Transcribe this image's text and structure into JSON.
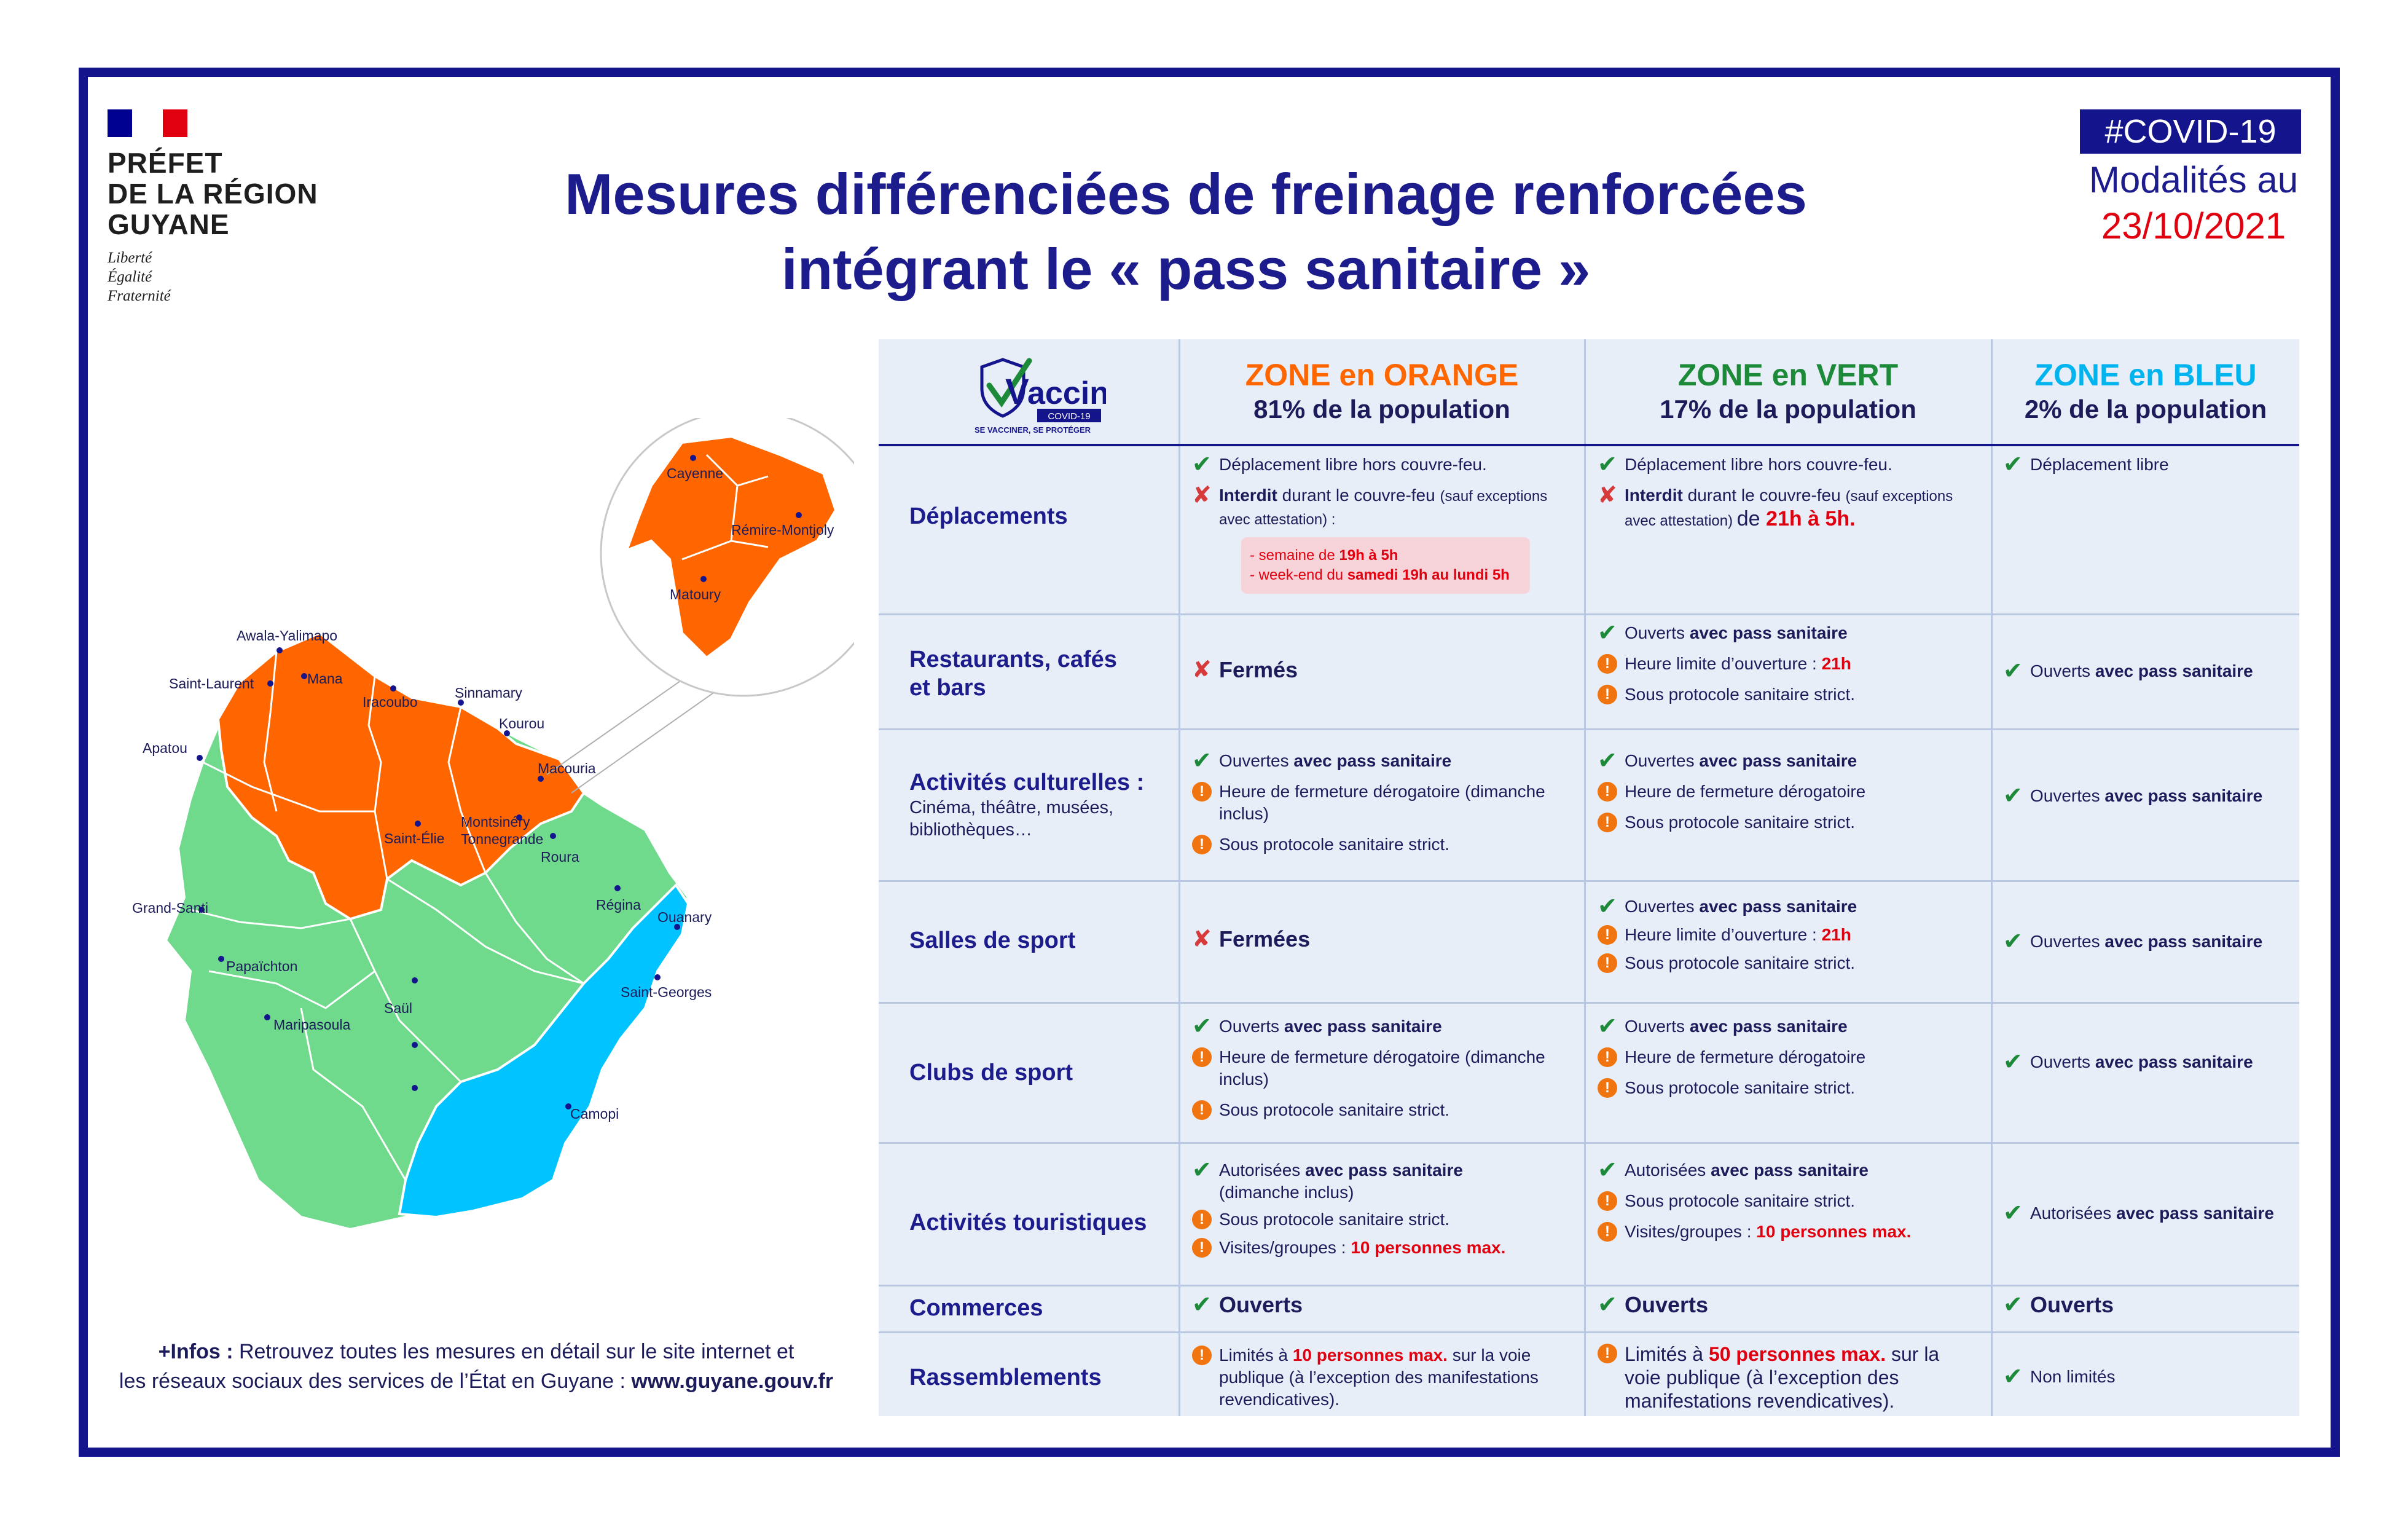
{
  "header": {
    "prefet_line1": "PRÉFET",
    "prefet_line2": "DE LA RÉGION",
    "prefet_line3": "GUYANE",
    "motto1": "Liberté",
    "motto2": "Égalité",
    "motto3": "Fraternité",
    "title_line1": "Mesures différenciées de freinage renforcées",
    "title_line2": "intégrant le «  pass sanitaire  »",
    "tag": "#COVID-19",
    "modalites": "Modalités au",
    "date": "23/10/2021"
  },
  "colors": {
    "navy": "#14148c",
    "orange": "#ff6600",
    "green": "#6fd98c",
    "blue": "#00c3ff",
    "red": "#e1000f"
  },
  "map": {
    "cities": [
      "Awala-Yalimapo",
      "Mana",
      "Saint-Laurent",
      "Iracoubo",
      "Sinnamary",
      "Kourou",
      "Apatou",
      "Macouria",
      "Montsinéry",
      "Tonnegrande",
      "Saint-Élie",
      "Roura",
      "Régina",
      "Ouanary",
      "Grand-Santi",
      "Papaïchton",
      "Saint-Georges",
      "Saül",
      "Maripasoula",
      "Camopi"
    ],
    "zoom_cities": [
      "Cayenne",
      "Rémire-Montjoly",
      "Matoury"
    ]
  },
  "infos": {
    "label": "+Infos :",
    "text1": " Retrouvez toutes les mesures en détail sur le site internet et",
    "text2": "les réseaux sociaux des services de l’État en Guyane : ",
    "url": "www.guyane.gouv.fr"
  },
  "vaccin_logo": {
    "word": "accin",
    "letter": "V",
    "badge": "COVID-19",
    "slogan": "SE VACCINER, SE PROTÉGER"
  },
  "zones": [
    {
      "name": "ZONE en ORANGE",
      "pct": "81% de la population",
      "color": "#ff6600"
    },
    {
      "name": "ZONE en VERT",
      "pct": "17% de la population",
      "color": "#1d8a3a"
    },
    {
      "name": "ZONE en BLEU",
      "pct": "2% de la population",
      "color": "#00b4f0"
    }
  ],
  "rows": {
    "deplacements": {
      "label": "Déplacements",
      "orange_1": "Déplacement libre hors couvre-feu.",
      "orange_2a": "Interdit",
      "orange_2b": " durant le couvre-feu ",
      "orange_2c": "(sauf exceptions avec attestation) :",
      "orange_box1a": "- semaine de ",
      "orange_box1b": "19h à 5h",
      "orange_box2a": "- week-end du ",
      "orange_box2b": "samedi 19h au lundi 5h",
      "vert_1": "Déplacement libre hors couvre-feu.",
      "vert_2a": "Interdit",
      "vert_2b": " durant le couvre-feu ",
      "vert_2c": "(sauf exceptions avec attestation) ",
      "vert_2d": "de ",
      "vert_2e": "21h à 5h.",
      "bleu_1": "Déplacement libre"
    },
    "restaurants": {
      "label1": "Restaurants, cafés",
      "label2": "et bars",
      "orange_1": "Fermés",
      "vert_1a": "Ouverts ",
      "vert_1b": "avec pass sanitaire",
      "vert_2a": "Heure limite d’ouverture : ",
      "vert_2b": "21h",
      "vert_3": "Sous protocole sanitaire strict.",
      "bleu_1a": "Ouverts ",
      "bleu_1b": "avec pass sanitaire"
    },
    "culture": {
      "label": "Activités culturelles :",
      "sub1": "Cinéma, théâtre, musées,",
      "sub2": "bibliothèques…",
      "orange_1a": "Ouvertes ",
      "orange_1b": "avec pass sanitaire",
      "orange_2": "Heure de fermeture dérogatoire (dimanche inclus)",
      "orange_3": "Sous protocole sanitaire strict.",
      "vert_1a": "Ouvertes ",
      "vert_1b": "avec pass sanitaire",
      "vert_2": "Heure de fermeture dérogatoire",
      "vert_3": "Sous protocole sanitaire strict.",
      "bleu_1a": "Ouvertes ",
      "bleu_1b": "avec pass sanitaire"
    },
    "salles": {
      "label": "Salles de sport",
      "orange_1": "Fermées",
      "vert_1a": "Ouvertes ",
      "vert_1b": "avec pass sanitaire",
      "vert_2a": "Heure limite d’ouverture : ",
      "vert_2b": "21h",
      "vert_3": "Sous protocole sanitaire strict.",
      "bleu_1a": "Ouvertes ",
      "bleu_1b": "avec pass sanitaire"
    },
    "clubs": {
      "label": "Clubs de sport",
      "orange_1a": "Ouverts ",
      "orange_1b": "avec pass sanitaire",
      "orange_2": "Heure de fermeture dérogatoire (dimanche inclus)",
      "orange_3": "Sous protocole sanitaire strict.",
      "vert_1a": "Ouverts ",
      "vert_1b": "avec pass sanitaire",
      "vert_2": "Heure de fermeture dérogatoire",
      "vert_3": "Sous protocole sanitaire strict.",
      "bleu_1a": "Ouverts ",
      "bleu_1b": "avec pass sanitaire"
    },
    "tourisme": {
      "label": "Activités touristiques",
      "orange_1a": "Autorisées ",
      "orange_1b": "avec pass sanitaire",
      "orange_1c": "(dimanche inclus)",
      "orange_2": "Sous protocole sanitaire strict.",
      "orange_3a": "Visites/groupes : ",
      "orange_3b": "10 personnes max.",
      "vert_1a": "Autorisées ",
      "vert_1b": "avec pass sanitaire",
      "vert_2": "Sous protocole sanitaire strict.",
      "vert_3a": "Visites/groupes : ",
      "vert_3b": "10 personnes max.",
      "bleu_1a": "Autorisées ",
      "bleu_1b": "avec pass sanitaire"
    },
    "commerces": {
      "label": "Commerces",
      "orange_1": "Ouverts",
      "vert_1": "Ouverts",
      "bleu_1": "Ouverts"
    },
    "rassemblements": {
      "label": "Rassemblements",
      "orange_1a": "Limités à ",
      "orange_1b": "10 personnes max.",
      "orange_1c": " sur la voie publique (à l’exception des manifestations revendicatives).",
      "vert_1a": "Limités à ",
      "vert_1b": "50 personnes max.",
      "vert_1c": " sur la voie publique (à l’exception des manifestations revendicatives).",
      "bleu_1": "Non limités"
    }
  }
}
